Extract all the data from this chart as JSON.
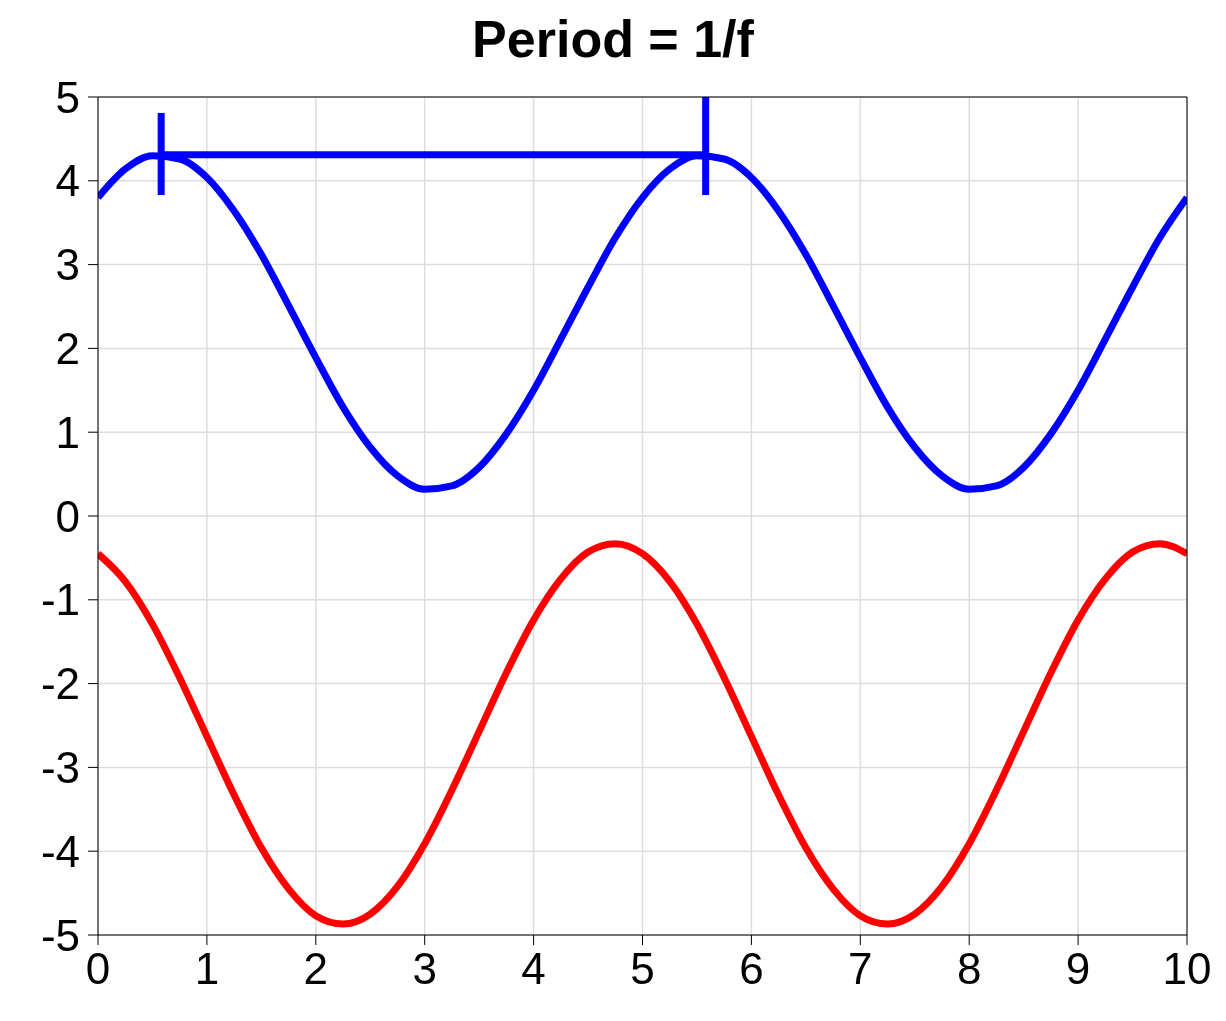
{
  "chart_data": {
    "type": "line",
    "title": "Period = 1/f",
    "x": [
      0,
      0.25,
      0.5,
      0.75,
      1,
      1.25,
      1.5,
      1.75,
      2,
      2.25,
      2.5,
      2.75,
      3,
      3.25,
      3.5,
      3.75,
      4,
      4.25,
      4.5,
      4.75,
      5,
      5.25,
      5.5,
      5.75,
      6,
      6.25,
      6.5,
      6.75,
      7,
      7.25,
      7.5,
      7.75,
      8,
      8.25,
      8.5,
      8.75,
      9,
      9.25,
      9.5,
      9.75,
      10
    ],
    "series": [
      {
        "color": "#0000ff",
        "values": [
          3.8,
          4.14,
          4.3,
          4.26,
          4.04,
          3.64,
          3.12,
          2.51,
          1.89,
          1.3,
          0.82,
          0.48,
          0.32,
          0.36,
          0.58,
          0.98,
          1.5,
          2.11,
          2.73,
          3.32,
          3.8,
          4.14,
          4.3,
          4.26,
          4.04,
          3.64,
          3.12,
          2.51,
          1.89,
          1.3,
          0.82,
          0.48,
          0.32,
          0.36,
          0.58,
          0.98,
          1.5,
          2.11,
          2.73,
          3.32,
          3.8
        ]
      },
      {
        "color": "#ff0000",
        "values": [
          -0.45,
          -0.78,
          -1.29,
          -1.93,
          -2.63,
          -3.33,
          -3.96,
          -4.45,
          -4.77,
          -4.87,
          -4.75,
          -4.42,
          -3.91,
          -3.27,
          -2.57,
          -1.87,
          -1.24,
          -0.75,
          -0.43,
          -0.33,
          -0.45,
          -0.78,
          -1.29,
          -1.93,
          -2.63,
          -3.33,
          -3.96,
          -4.45,
          -4.77,
          -4.87,
          -4.75,
          -4.42,
          -3.91,
          -3.27,
          -2.57,
          -1.87,
          -1.24,
          -0.75,
          -0.43,
          -0.33,
          -0.45
        ]
      },
      {
        "color": "#0000ff",
        "x": [
          0.58,
          5.58
        ],
        "values": [
          4.31,
          4.31
        ],
        "errors": [
          [
            3.83,
            4.81
          ],
          [
            3.83,
            5.0
          ]
        ]
      }
    ],
    "xlim": [
      0,
      10
    ],
    "xticks": [
      0,
      1,
      2,
      3,
      4,
      5,
      6,
      7,
      8,
      9,
      10
    ],
    "ylim": [
      -5,
      5
    ],
    "yticks": [
      -5,
      -4,
      -3,
      -2,
      -1,
      0,
      1,
      2,
      3,
      4,
      5
    ],
    "grid": true,
    "line_style": "solid"
  }
}
